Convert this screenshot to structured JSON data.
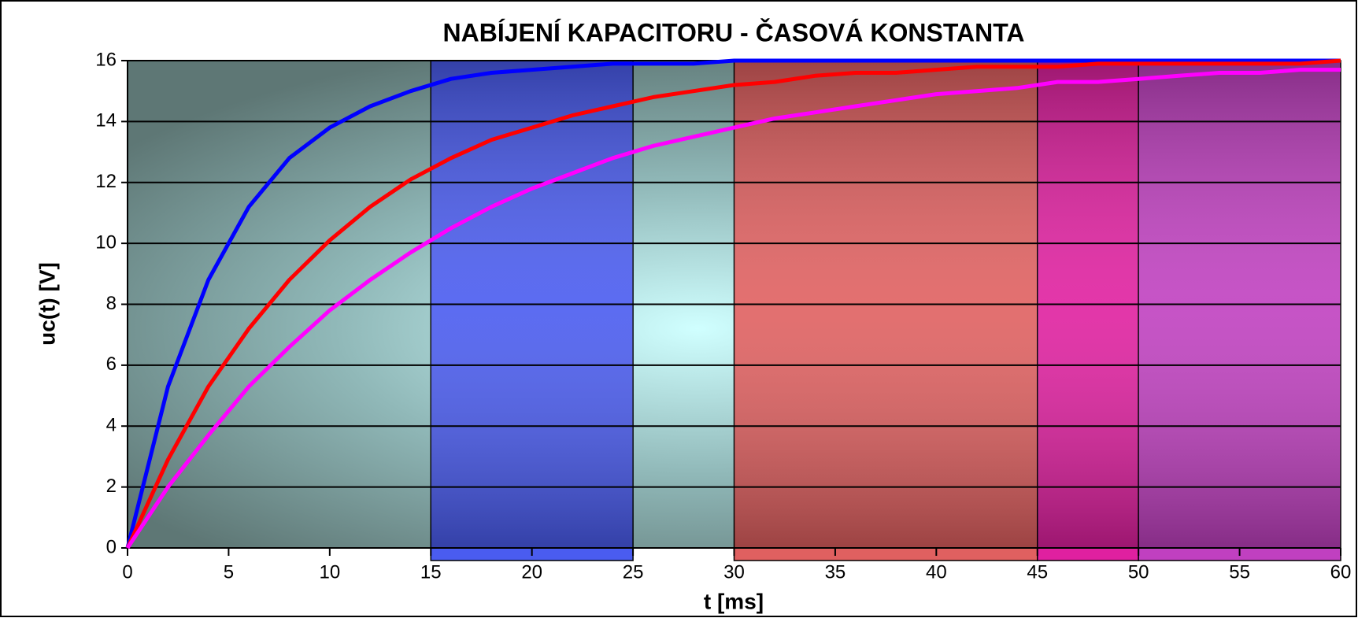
{
  "chart_data": {
    "type": "line",
    "title": "NABÍJENÍ KAPACITORU - ČASOVÁ KONSTANTA",
    "x_label": "t [ms]",
    "y_label": "uc(t) [V]",
    "x": [
      0,
      2,
      4,
      6,
      8,
      10,
      12,
      14,
      16,
      18,
      20,
      22,
      24,
      26,
      28,
      30,
      32,
      34,
      36,
      38,
      40,
      42,
      44,
      46,
      48,
      50,
      52,
      54,
      56,
      58,
      60
    ],
    "series": [
      {
        "color": "#0000ff",
        "values": [
          0,
          5.3,
          8.8,
          11.2,
          12.8,
          13.8,
          14.5,
          15.0,
          15.4,
          15.6,
          15.7,
          15.8,
          15.9,
          15.9,
          15.9,
          16.0,
          16.0,
          16.0,
          16.0,
          16.0,
          16.0,
          16.0,
          16.0,
          16.0,
          16.0,
          16.0,
          16.0,
          16.0,
          16.0,
          16.0,
          16.0
        ]
      },
      {
        "color": "#ff0000",
        "values": [
          0,
          2.9,
          5.3,
          7.2,
          8.8,
          10.1,
          11.2,
          12.1,
          12.8,
          13.4,
          13.8,
          14.2,
          14.5,
          14.8,
          15.0,
          15.2,
          15.3,
          15.5,
          15.6,
          15.6,
          15.7,
          15.8,
          15.8,
          15.8,
          15.9,
          15.9,
          15.9,
          15.9,
          15.9,
          15.9,
          16.0
        ]
      },
      {
        "color": "#ff00ff",
        "values": [
          0,
          2.0,
          3.7,
          5.3,
          6.6,
          7.8,
          8.8,
          9.7,
          10.5,
          11.2,
          11.8,
          12.3,
          12.8,
          13.2,
          13.5,
          13.8,
          14.1,
          14.3,
          14.5,
          14.7,
          14.9,
          15.0,
          15.1,
          15.3,
          15.3,
          15.4,
          15.5,
          15.6,
          15.6,
          15.7,
          15.7
        ]
      }
    ],
    "bands": [
      {
        "x": [
          15,
          25
        ],
        "color": "#4a5cf0"
      },
      {
        "x": [
          30,
          45
        ],
        "color": "#e06060"
      },
      {
        "x": [
          45,
          50
        ],
        "color": "#e020a0"
      },
      {
        "x": [
          50,
          60
        ],
        "color": "#c040c0"
      }
    ],
    "xlim": [
      0,
      60
    ],
    "xticks": [
      0,
      5,
      10,
      15,
      20,
      25,
      30,
      35,
      40,
      45,
      50,
      55,
      60
    ],
    "ylim": [
      0,
      16
    ],
    "yticks": [
      0,
      2,
      4,
      6,
      8,
      10,
      12,
      14,
      16
    ],
    "grid": true
  }
}
